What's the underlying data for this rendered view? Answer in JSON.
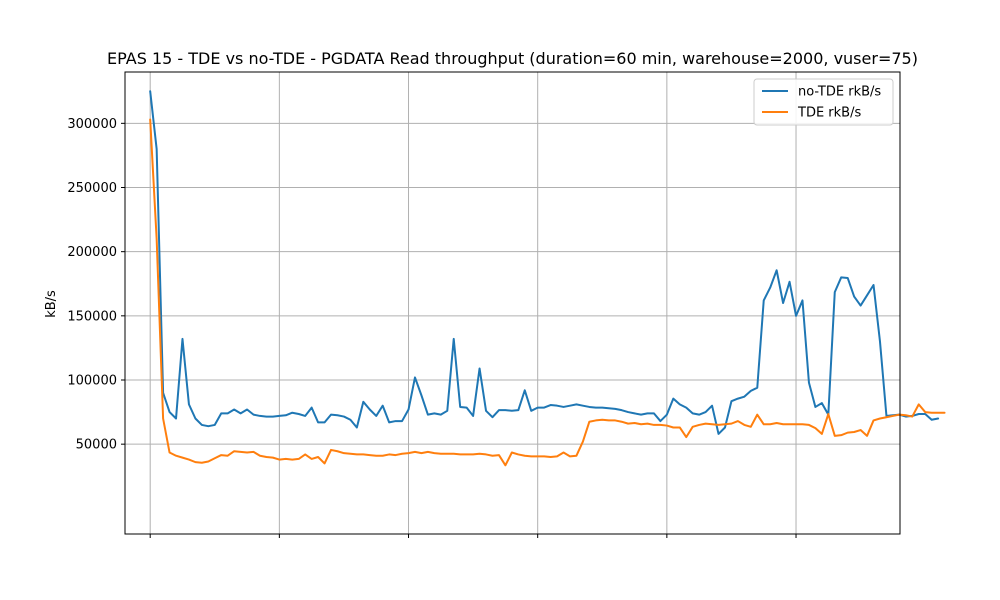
{
  "chart_data": {
    "type": "line",
    "title": "EPAS 15 - TDE vs no-TDE - PGDATA Read throughput (duration=60 min, warehouse=2000, vuser=75)",
    "xlabel": "",
    "ylabel": "kB/s",
    "xlim": [
      -0.39,
      11.61
    ],
    "ylim": [
      -20000,
      340000
    ],
    "x_grid_ticks": [
      0,
      2,
      4,
      6,
      8,
      10,
      12
    ],
    "y_ticks": [
      50000,
      100000,
      150000,
      200000,
      250000,
      300000
    ],
    "y_tick_labels": [
      "50000",
      "100000",
      "150000",
      "200000",
      "250000",
      "300000"
    ],
    "grid": true,
    "legend_position": "top-right",
    "x_step": 0.1,
    "series": [
      {
        "name": "no-TDE rkB/s",
        "color": "#1f77b4",
        "values": [
          325000,
          280000,
          90000,
          75000,
          70000,
          132000,
          81000,
          70000,
          65000,
          64000,
          65000,
          74000,
          74000,
          77000,
          74000,
          77000,
          73000,
          72000,
          71500,
          71500,
          72000,
          72500,
          74500,
          73500,
          72000,
          78500,
          67000,
          67000,
          73000,
          72500,
          71500,
          69000,
          63000,
          83000,
          77000,
          72000,
          80000,
          67000,
          68000,
          68000,
          77000,
          102000,
          88000,
          73000,
          74000,
          73000,
          76000,
          132000,
          79000,
          78500,
          72000,
          109000,
          76000,
          71000,
          76500,
          76500,
          76000,
          76500,
          92000,
          76000,
          78500,
          78500,
          80500,
          80000,
          79000,
          80000,
          81000,
          80000,
          79000,
          78500,
          78500,
          78000,
          77500,
          76500,
          75000,
          74000,
          73000,
          74000,
          74000,
          68000,
          73000,
          85500,
          81000,
          78500,
          74000,
          73000,
          75000,
          80000,
          58000,
          63000,
          83500,
          85500,
          87000,
          91500,
          94000,
          162000,
          172000,
          185500,
          160000,
          176500,
          150000,
          162000,
          98000,
          79000,
          82000,
          73000,
          168500,
          180000,
          179500,
          165000,
          158000,
          166000,
          174000,
          130000,
          72000,
          72500,
          73000,
          71500,
          72000,
          73500,
          73500,
          69000,
          70000
        ]
      },
      {
        "name": "TDE rkB/s",
        "color": "#ff7f0e",
        "values": [
          303000,
          210000,
          70000,
          43500,
          41000,
          39500,
          38000,
          36000,
          35500,
          36500,
          39000,
          41500,
          41000,
          44500,
          44000,
          43500,
          44000,
          41000,
          40000,
          39500,
          38000,
          38500,
          38000,
          38500,
          42000,
          38500,
          40000,
          35000,
          45500,
          44500,
          43000,
          42500,
          42000,
          42000,
          41500,
          41000,
          41000,
          42000,
          41500,
          42500,
          43000,
          44000,
          43000,
          44000,
          43000,
          42500,
          42500,
          42500,
          42000,
          42000,
          42000,
          42500,
          42000,
          41000,
          41500,
          33500,
          43500,
          42000,
          41000,
          40500,
          40500,
          40500,
          40000,
          40500,
          43500,
          40500,
          41000,
          52000,
          67500,
          68500,
          69000,
          68500,
          68500,
          67500,
          66000,
          66500,
          65500,
          66000,
          65000,
          65000,
          64500,
          63000,
          63000,
          55500,
          63500,
          65000,
          66000,
          65500,
          65000,
          65500,
          66000,
          68000,
          65000,
          63500,
          73000,
          65500,
          65500,
          66500,
          65500,
          65500,
          65500,
          65500,
          65000,
          62500,
          58000,
          73500,
          56500,
          57000,
          59000,
          59500,
          61000,
          56500,
          68500,
          70000,
          71000,
          72000,
          73000,
          72500,
          71500,
          81000,
          75000,
          74500,
          74500,
          74500
        ]
      }
    ]
  }
}
